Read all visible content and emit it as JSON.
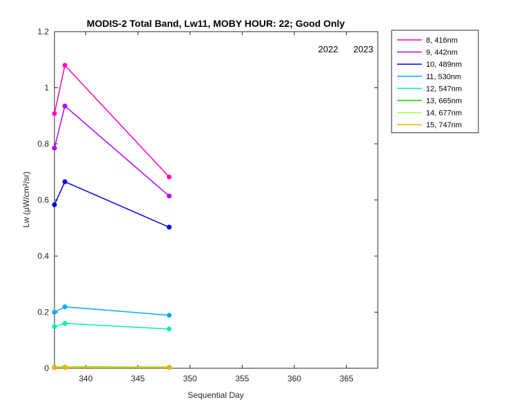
{
  "chart_data": {
    "type": "line",
    "title": "MODIS-2 Total Band,  Lw11, MOBY HOUR: 22;  Good Only",
    "xlabel": "Sequential Day",
    "ylabel": "Lw (µW/cm²/sr)",
    "xlim": [
      337,
      368
    ],
    "ylim": [
      0,
      1.2
    ],
    "xticks": [
      340,
      345,
      350,
      355,
      360,
      365
    ],
    "yticks": [
      0,
      0.2,
      0.4,
      0.6,
      0.8,
      1,
      1.2
    ],
    "x": [
      337,
      338,
      348
    ],
    "annotations": [
      "2022",
      "2023"
    ],
    "legend_position": "outside-top-right",
    "series": [
      {
        "name": "8, 416nm",
        "color": "#ff00c0",
        "values": [
          0.908,
          1.08,
          0.682
        ]
      },
      {
        "name": "9, 442nm",
        "color": "#b000ff",
        "values": [
          0.785,
          0.935,
          0.614
        ]
      },
      {
        "name": "10, 489nm",
        "color": "#0000e0",
        "values": [
          0.583,
          0.665,
          0.503
        ]
      },
      {
        "name": "11, 530nm",
        "color": "#00aaff",
        "values": [
          0.2,
          0.219,
          0.189
        ]
      },
      {
        "name": "12, 547nm",
        "color": "#00f0a0",
        "values": [
          0.148,
          0.16,
          0.14
        ]
      },
      {
        "name": "13, 665nm",
        "color": "#00d000",
        "values": [
          0.004,
          0.005,
          0.004
        ]
      },
      {
        "name": "14, 677nm",
        "color": "#a0ff40",
        "values": [
          0.003,
          0.004,
          0.003
        ]
      },
      {
        "name": "15, 747nm",
        "color": "#ffaa00",
        "values": [
          0.002,
          0.002,
          0.002
        ]
      }
    ]
  }
}
